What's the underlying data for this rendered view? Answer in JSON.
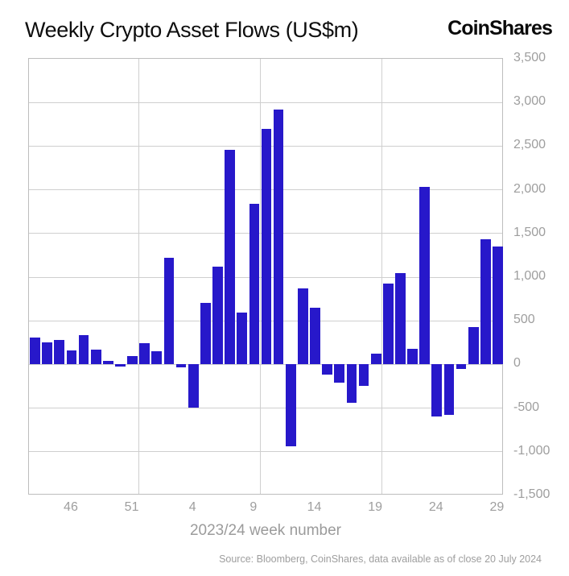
{
  "header": {
    "title": "Weekly Crypto Asset Flows (US$m)",
    "logo": "CoinShares"
  },
  "chart_data": {
    "type": "bar",
    "title": "Weekly Crypto Asset Flows (US$m)",
    "xlabel": "2023/24 week number",
    "ylabel": "",
    "ylim": [
      -1500,
      3500
    ],
    "y_tick_step": 500,
    "y_tick_labels": [
      "3,500",
      "3,000",
      "2,500",
      "2,000",
      "1,500",
      "1,000",
      "500",
      "0",
      "-500",
      "-1,000",
      "-1,500"
    ],
    "categories": [
      "43",
      "44",
      "45",
      "46",
      "47",
      "48",
      "49",
      "50",
      "51",
      "52",
      "1",
      "2",
      "3",
      "4",
      "5",
      "6",
      "7",
      "8",
      "9",
      "10",
      "11",
      "12",
      "13",
      "14",
      "15",
      "16",
      "17",
      "18",
      "19",
      "20",
      "21",
      "22",
      "23",
      "24",
      "25",
      "26",
      "27",
      "28",
      "29"
    ],
    "values": [
      310,
      250,
      280,
      165,
      340,
      170,
      40,
      -20,
      100,
      240,
      150,
      1220,
      -30,
      -490,
      705,
      1120,
      2460,
      590,
      1840,
      2700,
      2920,
      -940,
      870,
      645,
      -120,
      -205,
      -440,
      -250,
      125,
      930,
      1045,
      180,
      2030,
      -600,
      -580,
      -50,
      430,
      1435,
      1350
    ],
    "x_tick_labels": [
      "46",
      "51",
      "4",
      "9",
      "14",
      "19",
      "24",
      "29"
    ],
    "x_tick_indices": [
      3,
      8,
      13,
      18,
      23,
      28,
      33,
      38
    ],
    "v_gridlines_after_indices": [
      8,
      18,
      28
    ],
    "bar_color": "#2718ca",
    "grid_color": "#cfcfcf",
    "axis_border_color": "#bdbdbd",
    "label_color": "#9e9e9e",
    "grid": "on",
    "legend": "none"
  },
  "footer": {
    "source": "Source: Bloomberg, CoinShares, data available as of close 20 July 2024"
  }
}
